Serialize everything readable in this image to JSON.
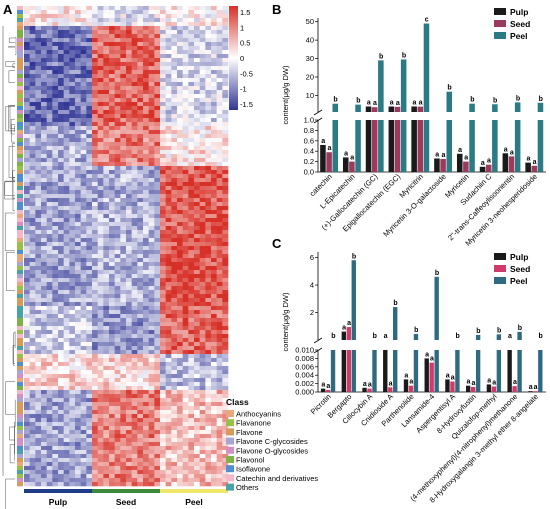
{
  "panels": {
    "a": "A",
    "b": "B",
    "c": "C"
  },
  "heatmap": {
    "type": "heatmap",
    "groups": [
      "Pulp",
      "Seed",
      "Peel"
    ],
    "group_colors": [
      "#1f3c88",
      "#3c8b3c",
      "#f2e66a"
    ],
    "colorbar": {
      "ticks": [
        "1.5",
        "1",
        "0.5",
        "0",
        "-0.5",
        "-1",
        "-1.5"
      ],
      "colors": [
        "#d73027",
        "#ffffff",
        "#313695"
      ]
    },
    "class_title": "Class",
    "classes": [
      {
        "name": "Anthocyanins",
        "color": "#e8a87c"
      },
      {
        "name": "Flavanone",
        "color": "#98c14a"
      },
      {
        "name": "Flavone",
        "color": "#d69a5a"
      },
      {
        "name": "Flavone C-glycosides",
        "color": "#a9a4d6"
      },
      {
        "name": "Flavone O-glycosides",
        "color": "#d48fc6"
      },
      {
        "name": "Flavonol",
        "color": "#7db246"
      },
      {
        "name": "Isoflavone",
        "color": "#4e8fd1"
      },
      {
        "name": "Catechin and derivatives",
        "color": "#f4b8c9"
      },
      {
        "name": "Others",
        "color": "#49a2a8"
      }
    ]
  },
  "chart_data": [
    {
      "type": "bar",
      "panel": "B",
      "ylabel": "content(μg/g DW)",
      "broken_axis": true,
      "upper_ticks": [
        "0",
        "10",
        "20",
        "30",
        "40",
        "50"
      ],
      "lower_ticks": [
        "0.0",
        "0.2",
        "0.4",
        "0.6",
        "0.8",
        "1.0"
      ],
      "upper_ylim": [
        1,
        52
      ],
      "lower_ylim": [
        0,
        1.0
      ],
      "categories": [
        "catechin",
        "L-Epicatechin",
        "(+)-Gallocatechin (GC)",
        "Epigallocatechin (EGC)",
        "Myricitrin",
        "Myricetin 3-O-galactoside",
        "Myricetin",
        "Sudachiin C",
        "2''-trans-Caffeoylisoorientin",
        "Myricetin 3-neohesperidoside"
      ],
      "series": [
        {
          "name": "Pulp",
          "color": "#1a1a1a",
          "values": [
            0.52,
            0.28,
            4.0,
            4.0,
            4.0,
            0.26,
            0.35,
            0.1,
            0.36,
            0.18
          ]
        },
        {
          "name": "Seed",
          "color": "#9b3a5c",
          "values": [
            0.38,
            0.2,
            3.6,
            3.8,
            3.9,
            0.25,
            0.2,
            0.14,
            0.3,
            0.12
          ]
        },
        {
          "name": "Peel",
          "color": "#2a7b85",
          "values": [
            5.5,
            5.0,
            29.0,
            29.5,
            49.0,
            12.0,
            5.5,
            5.2,
            6.2,
            6.0
          ]
        }
      ],
      "labels": [
        [
          "a",
          "a",
          "b"
        ],
        [
          "a",
          "a",
          "b"
        ],
        [
          "a",
          "a",
          "b"
        ],
        [
          "a",
          "a",
          "b"
        ],
        [
          "a",
          "a",
          "c"
        ],
        [
          "a",
          "a",
          "b"
        ],
        [
          "a",
          "a",
          "b"
        ],
        [
          "a",
          "a",
          "b"
        ],
        [
          "a",
          "a",
          "b"
        ],
        [
          "a",
          "a",
          "b"
        ]
      ]
    },
    {
      "type": "bar",
      "panel": "C",
      "ylabel": "content(μg/g DW)",
      "broken_axis": true,
      "upper_ticks": [
        "0",
        "2",
        "4",
        "6"
      ],
      "lower_ticks": [
        "0.000",
        "0.002",
        "0.004",
        "0.006",
        "0.008",
        "0.010"
      ],
      "upper_ylim": [
        0.01,
        6.4
      ],
      "lower_ylim": [
        0,
        0.01
      ],
      "categories": [
        "Picrotin",
        "Bergapto",
        "Cillocybin A",
        "Cnidioside A",
        "Parthenolide",
        "Lansamide-4",
        "Aspergentisyl A",
        "8-Hydroxyfustin",
        "Quizalofop-methyl",
        "(4-methoxyphenyl)(4-nitrophenyl)methanone",
        "8-Hydroxygalangin 3-methyl ether 8-angelate"
      ],
      "series": [
        {
          "name": "Pulp",
          "color": "#1a1a1a",
          "values": [
            0.0008,
            0.62,
            0.001,
            0.011,
            0.003,
            0.008,
            0.003,
            0.0015,
            0.0018,
            0.011,
            0.0002
          ]
        },
        {
          "name": "Seed",
          "color": "#d03a6a",
          "values": [
            0.0005,
            0.95,
            0.0008,
            0.0011,
            0.0015,
            0.007,
            0.0025,
            0.0012,
            0.0013,
            0.0014,
            0.0002
          ]
        },
        {
          "name": "Peel",
          "color": "#2e6a80",
          "values": [
            0.011,
            5.8,
            0.011,
            2.4,
            0.45,
            4.6,
            0.011,
            0.38,
            0.42,
            0.6,
            0.011
          ]
        }
      ],
      "labels": [
        [
          "a",
          "a",
          "b"
        ],
        [
          "a",
          "a",
          "b"
        ],
        [
          "a",
          "a",
          "b"
        ],
        [
          "a",
          "a",
          "b"
        ],
        [
          "a",
          "a",
          "b"
        ],
        [
          "a",
          "a",
          "b"
        ],
        [
          "a",
          "a",
          "b"
        ],
        [
          "a",
          "a",
          "b"
        ],
        [
          "a",
          "a",
          "b"
        ],
        [
          "a",
          "a",
          "b"
        ],
        [
          "a",
          "a",
          "b"
        ]
      ]
    }
  ]
}
